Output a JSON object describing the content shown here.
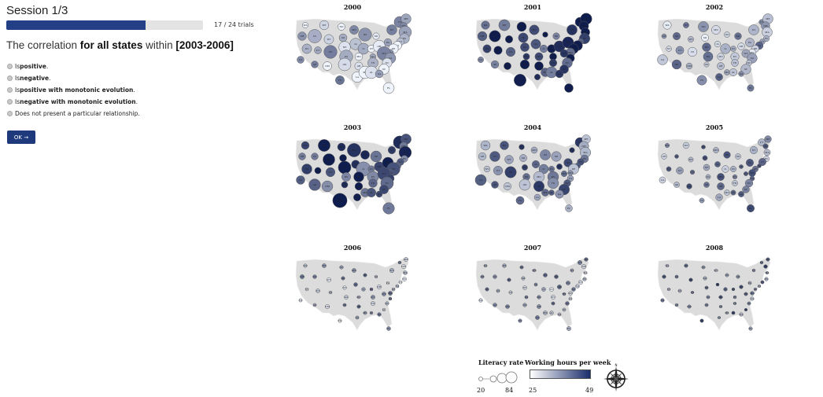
{
  "session": {
    "title": "Session 1/3"
  },
  "progress": {
    "value": 0.7083,
    "label": "17 / 24 trials"
  },
  "question": {
    "prefix": "The correlation ",
    "bold1": "for all states",
    "middle": " within ",
    "bold2": "[2003-2006]"
  },
  "options": [
    {
      "pre": "Is ",
      "bold": "positive",
      "post": "."
    },
    {
      "pre": "Is ",
      "bold": "negative",
      "post": "."
    },
    {
      "pre": "Is ",
      "bold": "positive with monotonic evolution",
      "post": "."
    },
    {
      "pre": "Is ",
      "bold": "negative with monotonic evolution",
      "post": "."
    },
    {
      "pre": "",
      "bold": "",
      "post": "Does not present a particular relationship."
    }
  ],
  "ok_label": "OK →",
  "maps": [
    {
      "year": "2000",
      "size": 0.85,
      "color": 0.25
    },
    {
      "year": "2001",
      "size": 0.75,
      "color": 0.85
    },
    {
      "year": "2002",
      "size": 0.6,
      "color": 0.35
    },
    {
      "year": "2003",
      "size": 0.9,
      "color": 0.8
    },
    {
      "year": "2004",
      "size": 0.7,
      "color": 0.55
    },
    {
      "year": "2005",
      "size": 0.4,
      "color": 0.45
    },
    {
      "year": "2006",
      "size": 0.15,
      "color": 0.35
    },
    {
      "year": "2007",
      "size": 0.15,
      "color": 0.35
    },
    {
      "year": "2008",
      "size": 0.1,
      "color": 0.5
    }
  ],
  "states": [
    "WA",
    "MT",
    "ND",
    "MN",
    "WI",
    "MI",
    "NY",
    "VT",
    "ME",
    "NH",
    "MA",
    "RI",
    "CT",
    "NJ",
    "OR",
    "ID",
    "WY",
    "SD",
    "IA",
    "IL",
    "IN",
    "OH",
    "PA",
    "DE",
    "MD",
    "NV",
    "UT",
    "CO",
    "NE",
    "KS",
    "MO",
    "KY",
    "WV",
    "VA",
    "CA",
    "AZ",
    "NM",
    "OK",
    "AR",
    "TN",
    "NC",
    "SC",
    "TX",
    "LA",
    "MS",
    "AL",
    "GA",
    "FL"
  ],
  "legend": {
    "literacy_title": "Literacy rate",
    "literacy_min": "20",
    "literacy_max": "84",
    "hours_title": "Working hours per week",
    "hours_min": "25",
    "hours_max": "49",
    "compass_label": "N"
  }
}
